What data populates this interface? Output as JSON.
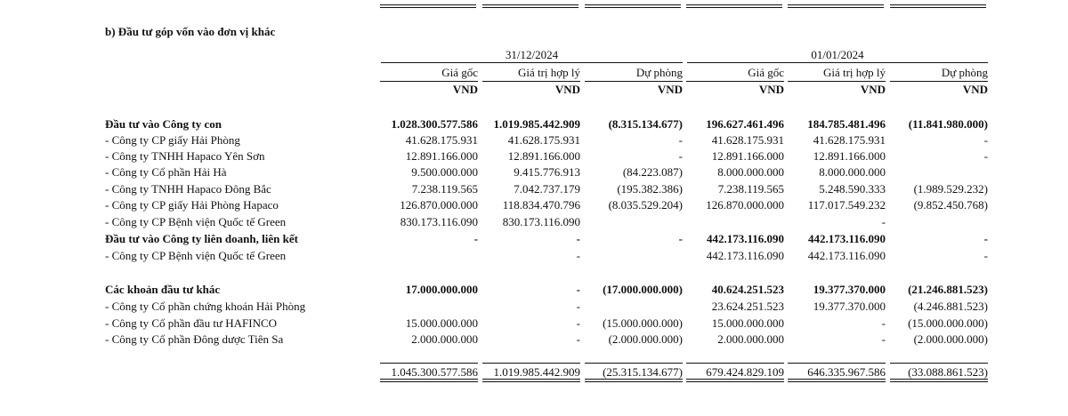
{
  "section_title": "b) Đầu tư góp vốn vào đơn vị khác",
  "period_headers": [
    "31/12/2024",
    "01/01/2024"
  ],
  "column_headers": [
    "Giá gốc",
    "Giá trị hợp lý",
    "Dự phòng",
    "Giá gốc",
    "Giá trị hợp lý",
    "Dự phòng"
  ],
  "currency_unit": "VND",
  "rows": [
    {
      "label": "Đầu tư vào Công ty con",
      "bold": true,
      "values": [
        "1.028.300.577.586",
        "1.019.985.442.909",
        "(8.315.134.677)",
        "196.627.461.496",
        "184.785.481.496",
        "(11.841.980.000)"
      ]
    },
    {
      "label": "- Công ty CP giấy Hải Phòng",
      "bold": false,
      "values": [
        "41.628.175.931",
        "41.628.175.931",
        "-",
        "41.628.175.931",
        "41.628.175.931",
        "-"
      ]
    },
    {
      "label": "- Công ty TNHH Hapaco Yên Sơn",
      "bold": false,
      "values": [
        "12.891.166.000",
        "12.891.166.000",
        "-",
        "12.891.166.000",
        "12.891.166.000",
        "-"
      ]
    },
    {
      "label": "- Công ty Cổ phần Hải Hà",
      "bold": false,
      "values": [
        "9.500.000.000",
        "9.415.776.913",
        "(84.223.087)",
        "8.000.000.000",
        "8.000.000.000",
        ""
      ]
    },
    {
      "label": "- Công ty TNHH Hapaco Đông Bắc",
      "bold": false,
      "values": [
        "7.238.119.565",
        "7.042.737.179",
        "(195.382.386)",
        "7.238.119.565",
        "5.248.590.333",
        "(1.989.529.232)"
      ]
    },
    {
      "label": "- Công ty CP giấy Hải Phòng Hapaco",
      "bold": false,
      "values": [
        "126.870.000.000",
        "118.834.470.796",
        "(8.035.529.204)",
        "126.870.000.000",
        "117.017.549.232",
        "(9.852.450.768)"
      ]
    },
    {
      "label": "- Công ty CP Bệnh viện Quốc tế Green",
      "bold": false,
      "values": [
        "830.173.116.090",
        "830.173.116.090",
        "",
        "",
        "-",
        ""
      ]
    },
    {
      "label": "Đầu tư vào Công ty liên doanh, liên kết",
      "bold": true,
      "values": [
        "-",
        "-",
        "-",
        "442.173.116.090",
        "442.173.116.090",
        "-"
      ]
    },
    {
      "label": "- Công ty CP Bệnh viện Quốc tế Green",
      "bold": false,
      "values": [
        "",
        "-",
        "",
        "442.173.116.090",
        "442.173.116.090",
        "-"
      ]
    },
    {
      "label": "Các khoản đầu tư khác",
      "bold": true,
      "values": [
        "17.000.000.000",
        "-",
        "(17.000.000.000)",
        "40.624.251.523",
        "19.377.370.000",
        "(21.246.881.523)"
      ]
    },
    {
      "label": "- Công ty Cổ phần chứng khoán Hải Phòng",
      "bold": false,
      "values": [
        "",
        "-",
        "",
        "23.624.251.523",
        "19.377.370.000",
        "(4.246.881.523)"
      ]
    },
    {
      "label": "- Công ty Cổ phần đầu tư HAFINCO",
      "bold": false,
      "values": [
        "15.000.000.000",
        "-",
        "(15.000.000.000)",
        "15.000.000.000",
        "-",
        "(15.000.000.000)"
      ]
    },
    {
      "label": "- Công ty Cổ phần Đông dược Tiên Sa",
      "bold": false,
      "values": [
        "2.000.000.000",
        "-",
        "(2.000.000.000)",
        "2.000.000.000",
        "-",
        "(2.000.000.000)"
      ]
    }
  ],
  "totals": [
    "1.045.300.577.586",
    "1.019.985.442.909",
    "(25.315.134.677)",
    "679.424.829.109",
    "646.335.967.586",
    "(33.088.861.523)"
  ]
}
